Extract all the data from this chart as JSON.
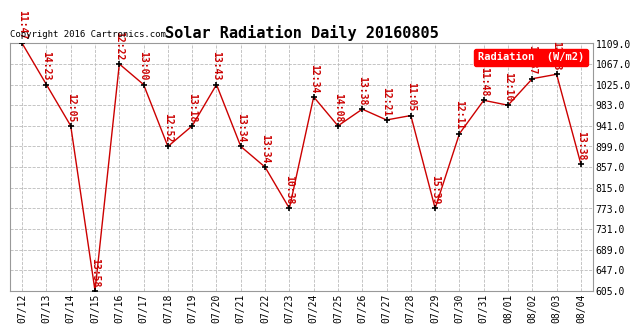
{
  "title": "Solar Radiation Daily 20160805",
  "copyright": "Copyright 2016 Cartronics.com",
  "legend_label": "Radiation  (W/m2)",
  "dates": [
    "07/12",
    "07/13",
    "07/14",
    "07/15",
    "07/16",
    "07/17",
    "07/18",
    "07/19",
    "07/20",
    "07/21",
    "07/22",
    "07/23",
    "07/24",
    "07/25",
    "07/26",
    "07/27",
    "07/28",
    "07/29",
    "07/30",
    "07/31",
    "08/01",
    "08/02",
    "08/03",
    "08/04"
  ],
  "values": [
    1109,
    1025,
    941,
    605,
    1067,
    1025,
    899,
    941,
    1025,
    899,
    857,
    773,
    1000,
    941,
    975,
    953,
    962,
    773,
    925,
    993,
    983,
    1037,
    1046,
    863
  ],
  "times": [
    "11:47",
    "14:23",
    "12:05",
    "13:58",
    "12:22",
    "13:00",
    "12:52",
    "13:18",
    "13:43",
    "13:34",
    "13:34",
    "10:38",
    "12:34",
    "14:08",
    "13:38",
    "12:21",
    "11:05",
    "15:39",
    "12:11",
    "11:48",
    "12:10",
    "12:37",
    "12:33",
    "13:38"
  ],
  "line_color": "#cc0000",
  "marker_color": "#000000",
  "bg_color": "#ffffff",
  "grid_color": "#bbbbbb",
  "ylim_min": 605.0,
  "ylim_max": 1109.0,
  "yticks": [
    605.0,
    647.0,
    689.0,
    731.0,
    773.0,
    815.0,
    857.0,
    899.0,
    941.0,
    983.0,
    1025.0,
    1067.0,
    1109.0
  ],
  "title_fontsize": 11,
  "label_fontsize": 7,
  "time_fontsize": 7
}
